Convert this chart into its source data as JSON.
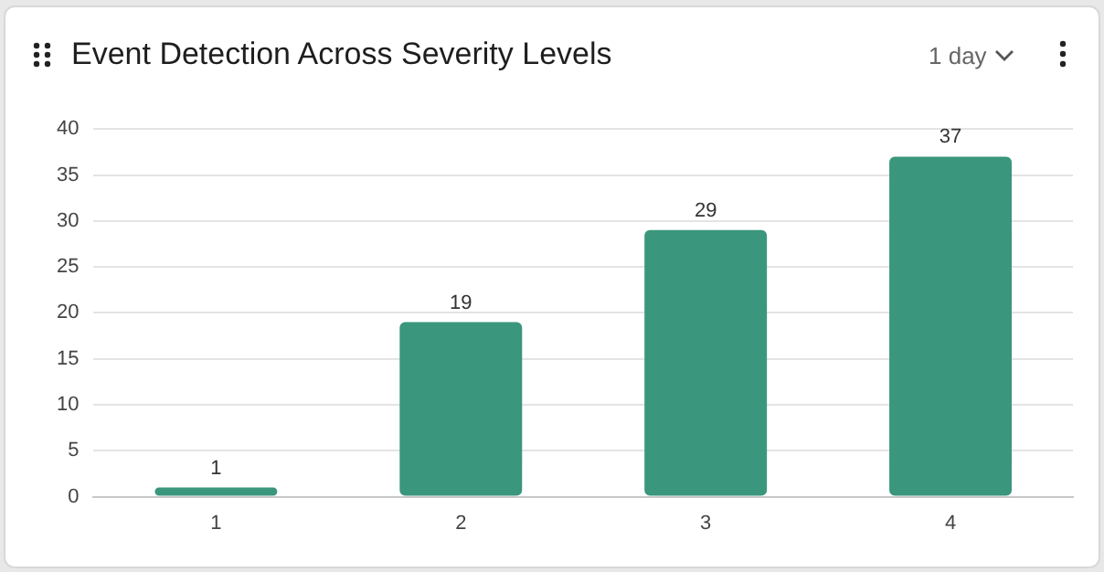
{
  "chart_data": {
    "type": "bar",
    "title": "Event Detection Across Severity Levels",
    "categories": [
      "1",
      "2",
      "3",
      "4"
    ],
    "values": [
      1,
      19,
      29,
      37
    ],
    "color": "#3a967c",
    "ylim": [
      0,
      40
    ],
    "yticks": [
      0,
      5,
      10,
      15,
      20,
      25,
      30,
      35,
      40
    ],
    "grid": "y",
    "legend": false,
    "data_labels": true,
    "annotations": [
      "1 day"
    ]
  }
}
